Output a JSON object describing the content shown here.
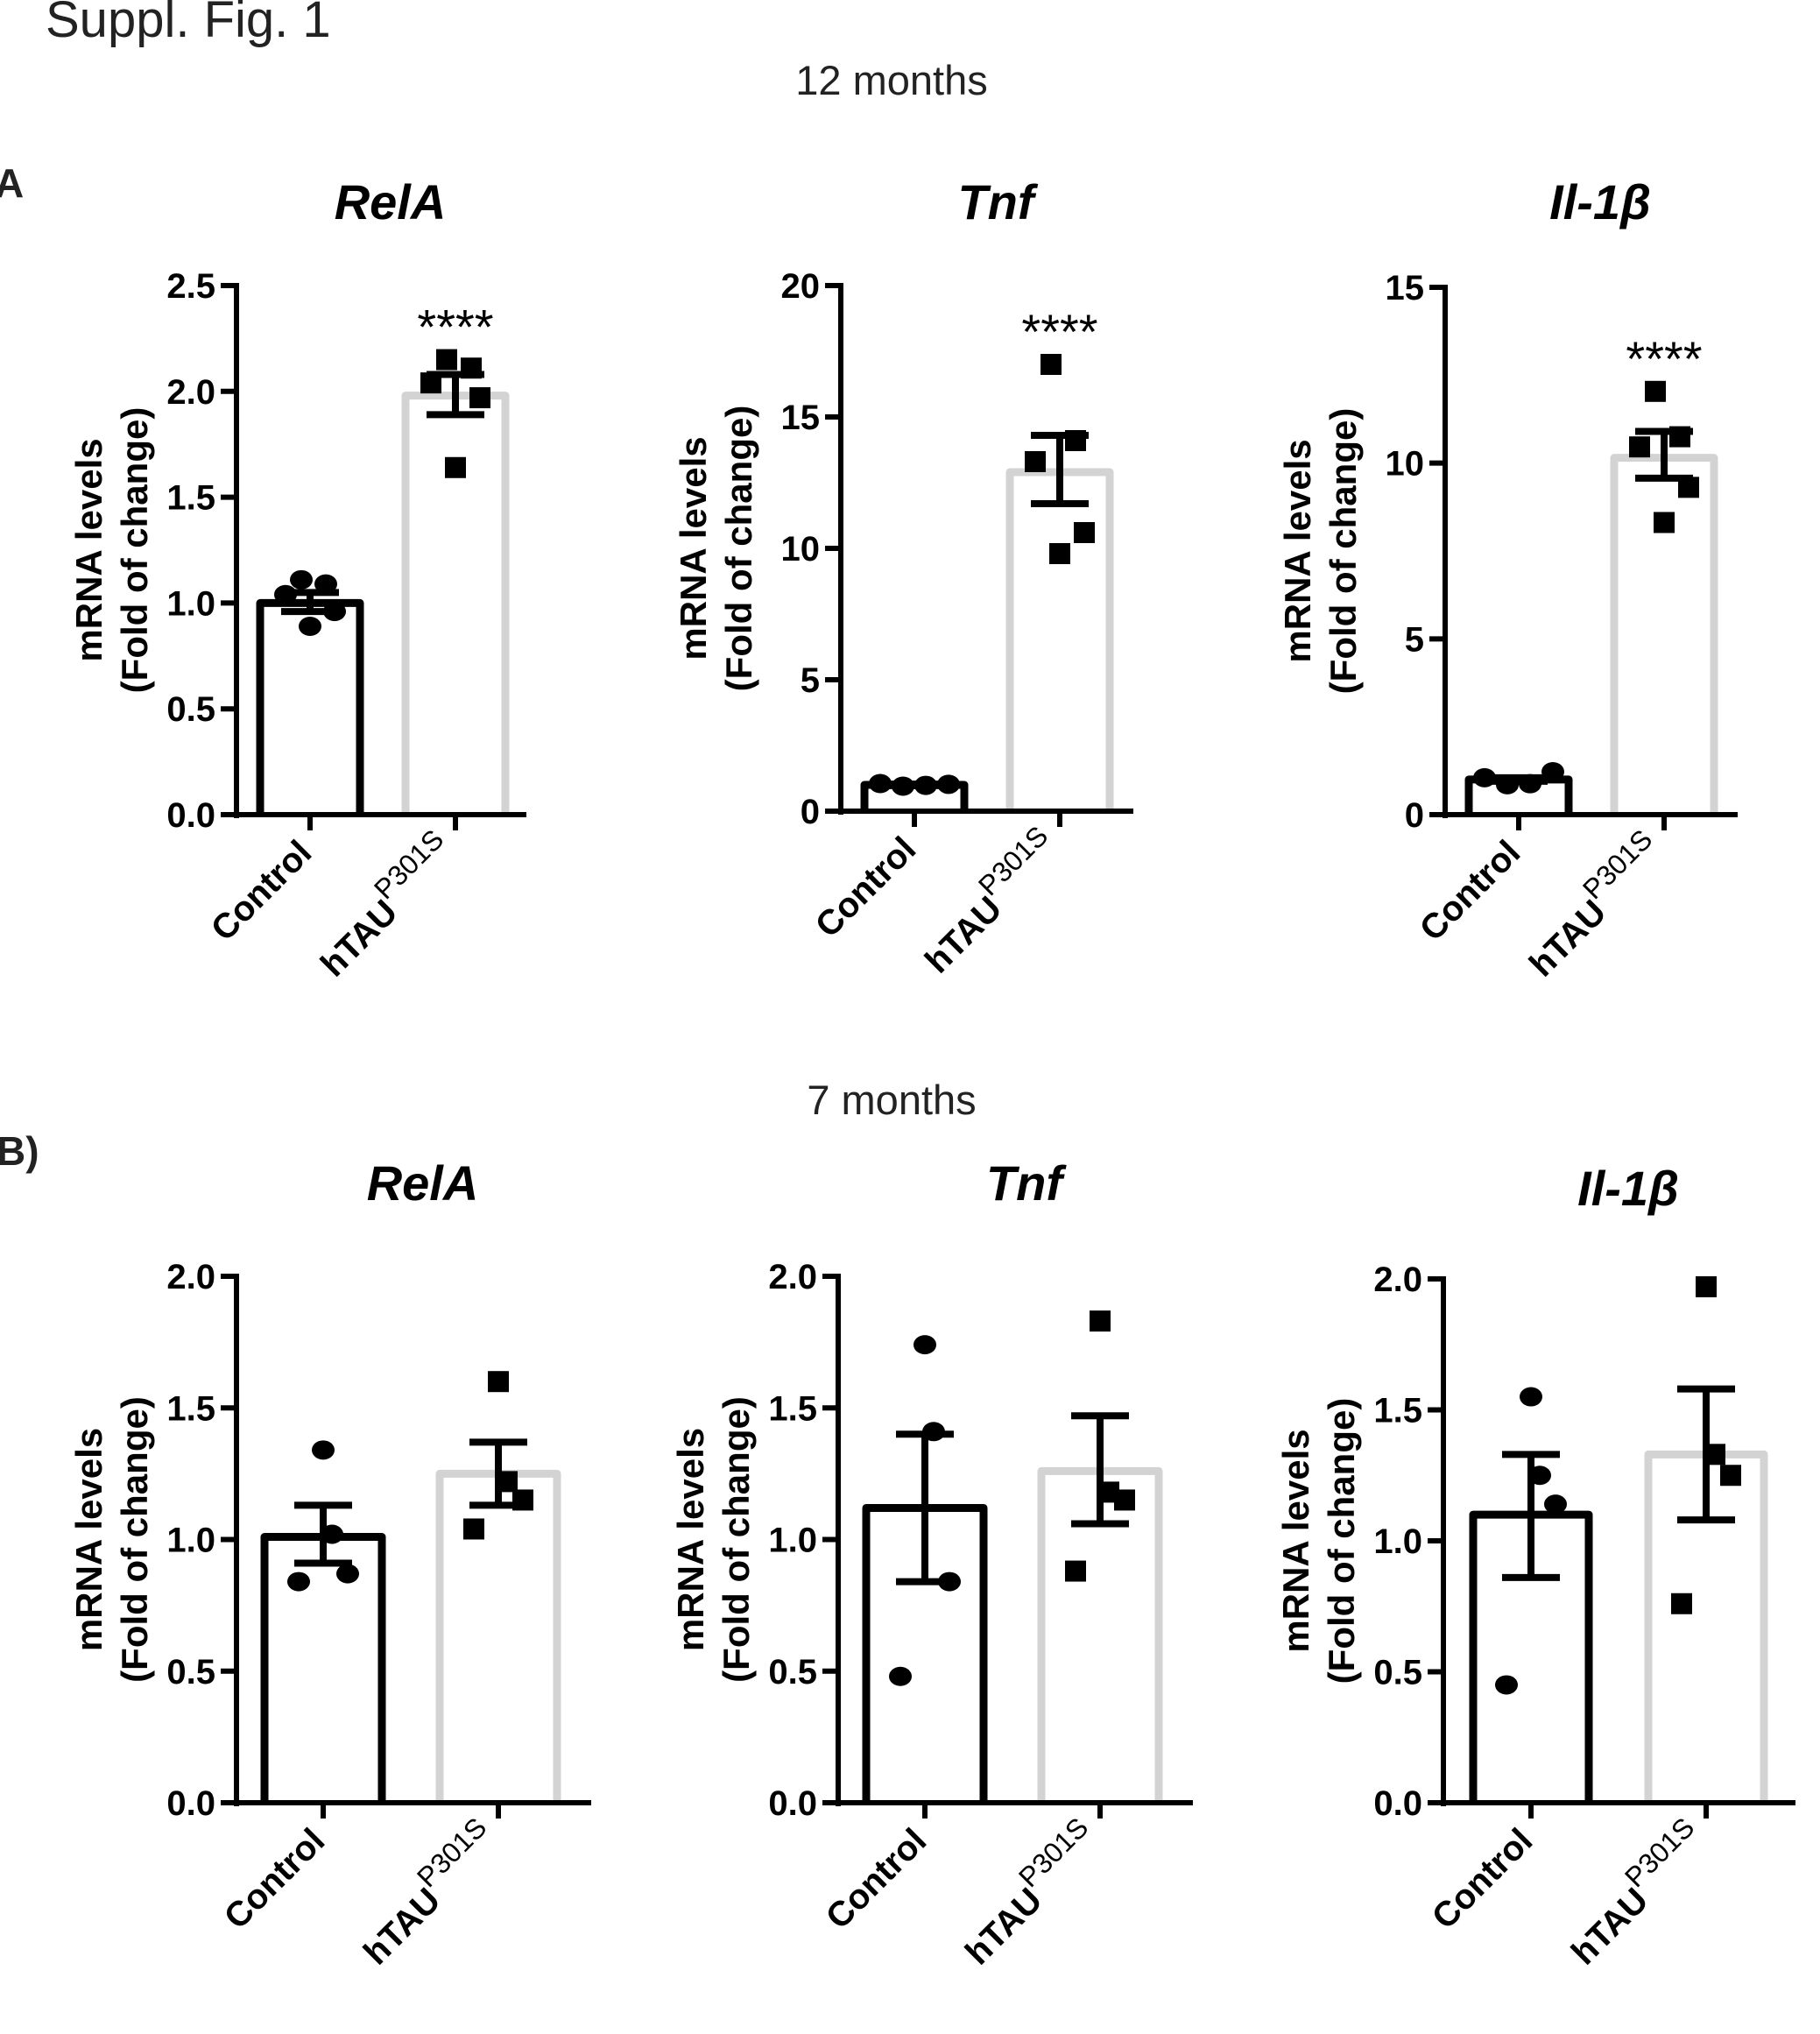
{
  "figure": {
    "title": "Suppl. Fig. 1",
    "rows": [
      {
        "period": "12 months",
        "panel_label": "A"
      },
      {
        "period": "7 months",
        "panel_label": "B)"
      }
    ]
  },
  "colors": {
    "control_bar": "#000000",
    "htau_bar": "#d3d3d3",
    "points": "#000000"
  },
  "chart_data": [
    {
      "type": "bar",
      "row": 0,
      "title": "RelA",
      "ylabel_line1": "mRNA levels",
      "ylabel_line2": "(Fold of change)",
      "ylim": [
        0,
        2.5
      ],
      "yticks": [
        0.0,
        0.5,
        1.0,
        1.5,
        2.0,
        2.5
      ],
      "ytick_labels": [
        "0.0",
        "0.5",
        "1.0",
        "1.5",
        "2.0",
        "2.5"
      ],
      "categories": [
        "Control",
        "hTAU"
      ],
      "category_superscripts": [
        "",
        "P301S"
      ],
      "means": [
        1.0,
        1.98
      ],
      "sem": [
        [
          0.96,
          1.05
        ],
        [
          1.89,
          2.08
        ]
      ],
      "points": [
        [
          1.11,
          1.09,
          1.04,
          0.96,
          0.89
        ],
        [
          2.15,
          2.11,
          2.04,
          1.97,
          1.64
        ]
      ],
      "significance": "****"
    },
    {
      "type": "bar",
      "row": 0,
      "title": "Tnf",
      "ylabel_line1": "mRNA levels",
      "ylabel_line2": "(Fold of change)",
      "ylim": [
        0,
        20
      ],
      "yticks": [
        0,
        5,
        10,
        15,
        20
      ],
      "ytick_labels": [
        "0",
        "5",
        "10",
        "15",
        "20"
      ],
      "categories": [
        "Control",
        "hTAU"
      ],
      "category_superscripts": [
        "",
        "P301S"
      ],
      "means": [
        1.0,
        12.9
      ],
      "sem": [
        [
          0.97,
          1.03
        ],
        [
          11.7,
          14.3
        ]
      ],
      "points": [
        [
          1.05,
          0.95,
          0.98,
          1.02
        ],
        [
          17.0,
          14.1,
          13.3,
          10.6,
          9.8
        ]
      ],
      "significance": "****"
    },
    {
      "type": "bar",
      "row": 0,
      "title": "Il-1β",
      "ylabel_line1": "mRNA levels",
      "ylabel_line2": "(Fold of change)",
      "ylim": [
        0,
        15
      ],
      "yticks": [
        0,
        5,
        10,
        15
      ],
      "ytick_labels": [
        "0",
        "5",
        "10",
        "15"
      ],
      "categories": [
        "Control",
        "hTAU"
      ],
      "category_superscripts": [
        "",
        "P301S"
      ],
      "means": [
        1.0,
        10.15
      ],
      "sem": [
        [
          0.95,
          1.05
        ],
        [
          9.57,
          10.9
        ]
      ],
      "points": [
        [
          1.05,
          0.85,
          0.88,
          1.22
        ],
        [
          12.04,
          10.75,
          10.46,
          9.31,
          8.31
        ]
      ],
      "significance": "****"
    },
    {
      "type": "bar",
      "row": 1,
      "title": "RelA",
      "ylabel_line1": "mRNA levels",
      "ylabel_line2": "(Fold of change)",
      "ylim": [
        0,
        2.0
      ],
      "yticks": [
        0.0,
        0.5,
        1.0,
        1.5,
        2.0
      ],
      "ytick_labels": [
        "0.0",
        "0.5",
        "1.0",
        "1.5",
        "2.0"
      ],
      "categories": [
        "Control",
        "hTAU"
      ],
      "category_superscripts": [
        "",
        "P301S"
      ],
      "means": [
        1.01,
        1.25
      ],
      "sem": [
        [
          0.91,
          1.13
        ],
        [
          1.13,
          1.37
        ]
      ],
      "points": [
        [
          1.34,
          1.02,
          0.87,
          0.84
        ],
        [
          1.6,
          1.22,
          1.15,
          1.04
        ]
      ],
      "significance": ""
    },
    {
      "type": "bar",
      "row": 1,
      "title": "Tnf",
      "ylabel_line1": "mRNA levels",
      "ylabel_line2": "(Fold of change)",
      "ylim": [
        0,
        2.0
      ],
      "yticks": [
        0.0,
        0.5,
        1.0,
        1.5,
        2.0
      ],
      "ytick_labels": [
        "0.0",
        "0.5",
        "1.0",
        "1.5",
        "2.0"
      ],
      "categories": [
        "Control",
        "hTAU"
      ],
      "category_superscripts": [
        "",
        "P301S"
      ],
      "means": [
        1.12,
        1.26
      ],
      "sem": [
        [
          0.84,
          1.4
        ],
        [
          1.06,
          1.47
        ]
      ],
      "points": [
        [
          1.74,
          1.41,
          0.84,
          0.48
        ],
        [
          1.83,
          1.18,
          1.15,
          0.88
        ]
      ],
      "significance": ""
    },
    {
      "type": "bar",
      "row": 1,
      "title": "Il-1β",
      "ylabel_line1": "mRNA levels",
      "ylabel_line2": "(Fold of change)",
      "ylim": [
        0,
        2.0
      ],
      "yticks": [
        0.0,
        0.5,
        1.0,
        1.5,
        2.0
      ],
      "ytick_labels": [
        "0.0",
        "0.5",
        "1.0",
        "1.5",
        "2.0"
      ],
      "categories": [
        "Control",
        "hTAU"
      ],
      "category_superscripts": [
        "",
        "P301S"
      ],
      "means": [
        1.1,
        1.33
      ],
      "sem": [
        [
          0.86,
          1.33
        ],
        [
          1.08,
          1.58
        ]
      ],
      "points": [
        [
          1.55,
          1.25,
          1.14,
          0.45
        ],
        [
          1.97,
          1.33,
          1.25,
          0.76
        ]
      ],
      "significance": ""
    }
  ]
}
